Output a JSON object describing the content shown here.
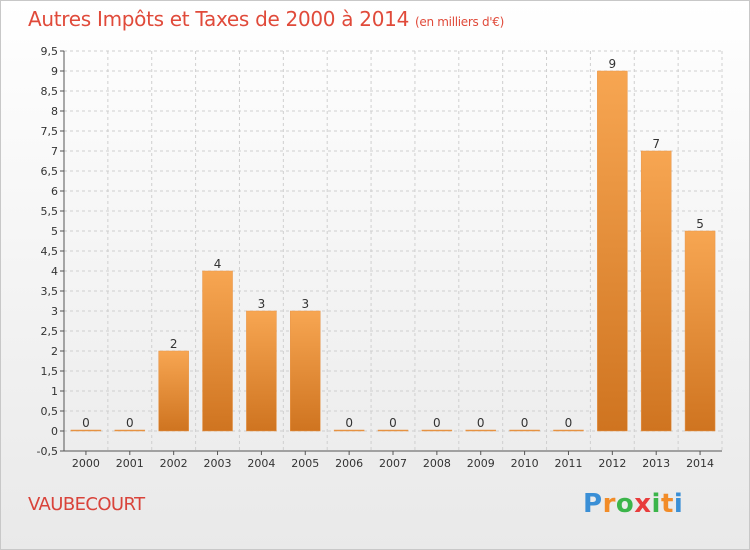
{
  "header": {
    "title": "Autres Impôts et Taxes de 2000 à 2014",
    "unit": "(en milliers d'€)"
  },
  "footer": {
    "commune": "VAUBECOURT",
    "logo_letters": [
      "P",
      "r",
      "o",
      "x",
      "i",
      "t",
      "i"
    ],
    "logo_colors": [
      "#3a8fd6",
      "#f28c28",
      "#3bb54a",
      "#e83c3c",
      "#3bb54a",
      "#f28c28",
      "#3a8fd6"
    ]
  },
  "colors": {
    "bar_top": "#f7a652",
    "bar_bottom": "#cf7420",
    "grid": "#cfcfcf",
    "axis": "#555555"
  },
  "chart_data": {
    "type": "bar",
    "title": "Autres Impôts et Taxes de 2000 à 2014",
    "subtitle": "(en milliers d'€)",
    "categories": [
      "2000",
      "2001",
      "2002",
      "2003",
      "2004",
      "2005",
      "2006",
      "2007",
      "2008",
      "2009",
      "2010",
      "2011",
      "2012",
      "2013",
      "2014"
    ],
    "values": [
      0,
      0,
      2,
      4,
      3,
      3,
      0,
      0,
      0,
      0,
      0,
      0,
      9,
      7,
      5
    ],
    "ylim": [
      -0.5,
      9.5
    ],
    "yticks": [
      "-0,5",
      "0",
      "0,5",
      "1",
      "1,5",
      "2",
      "2,5",
      "3",
      "3,5",
      "4",
      "4,5",
      "5",
      "5,5",
      "6",
      "6,5",
      "7",
      "7,5",
      "8",
      "8,5",
      "9",
      "9,5"
    ],
    "grid": true,
    "legend": "none"
  }
}
